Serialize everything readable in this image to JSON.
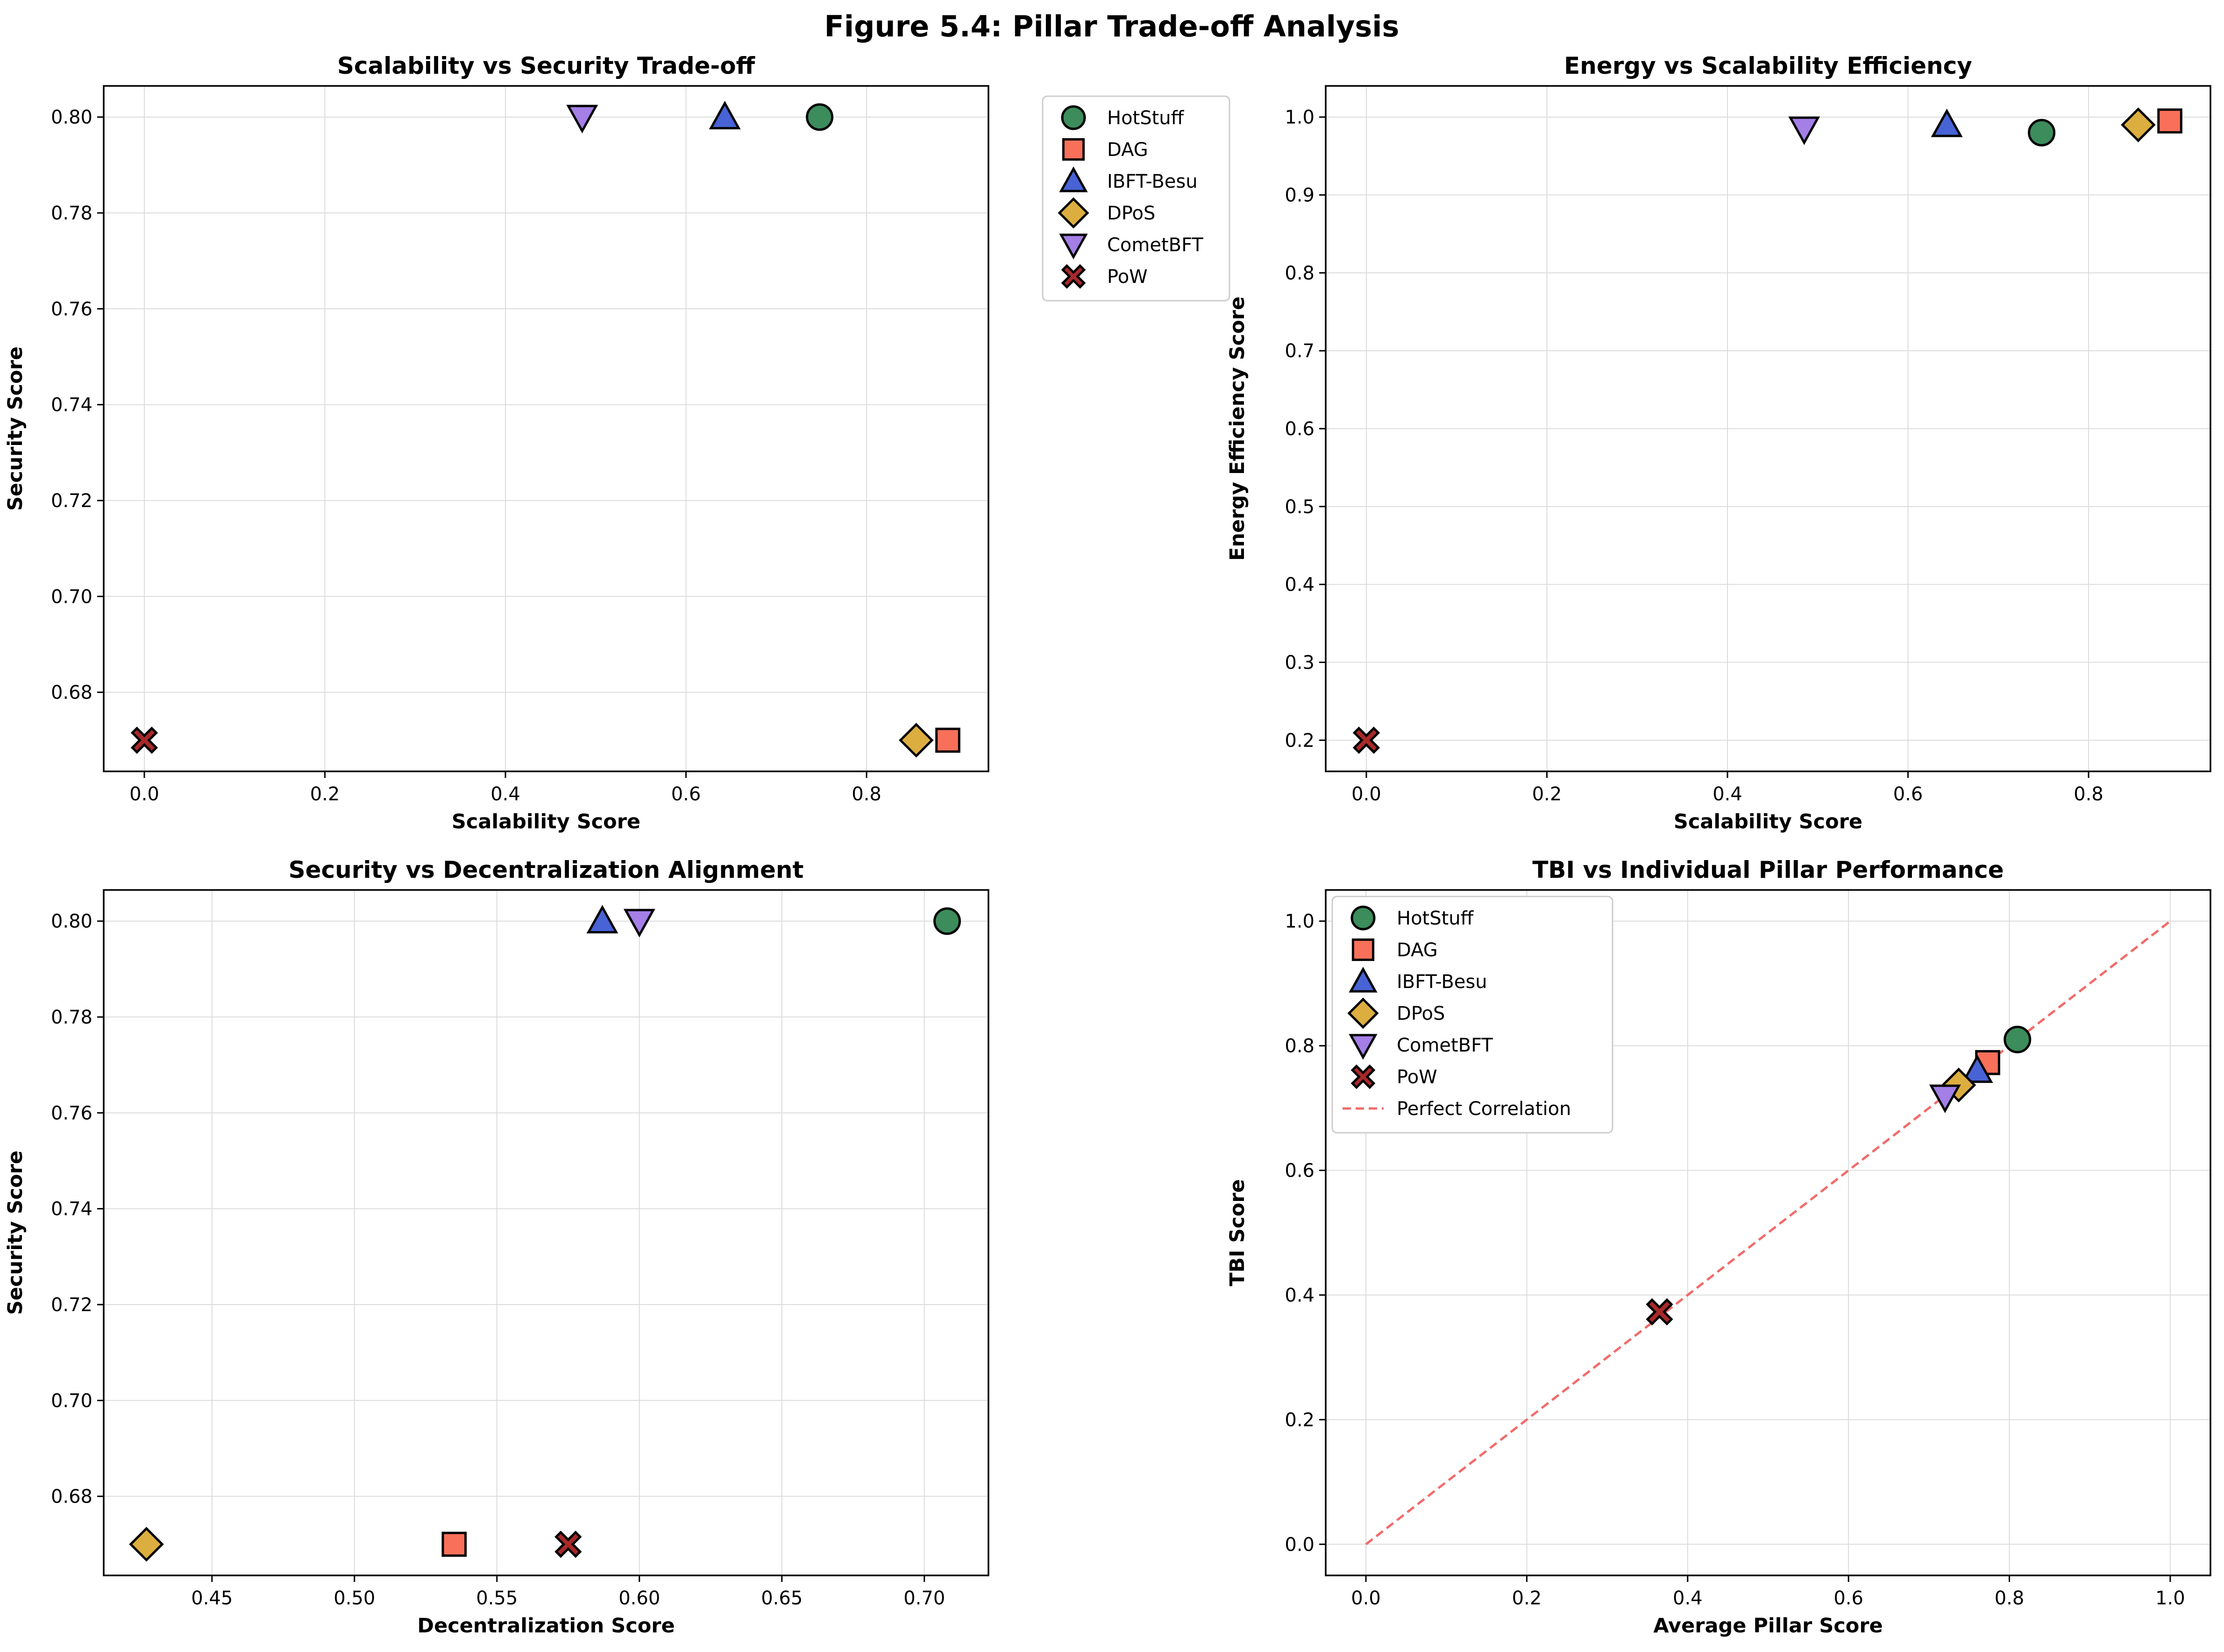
{
  "figure_title": "Figure 5.4: Pillar Trade-off Analysis",
  "styles": {
    "HotStuff": {
      "color": "#3c8c5c",
      "marker": "circle"
    },
    "DAG": {
      "color": "#f8705a",
      "marker": "square"
    },
    "IBFT-Besu": {
      "color": "#4863d6",
      "marker": "triangle-up"
    },
    "DPoS": {
      "color": "#dcae40",
      "marker": "diamond"
    },
    "CometBFT": {
      "color": "#a37fe6",
      "marker": "triangle-down"
    },
    "PoW": {
      "color": "#a8292a",
      "marker": "x-filled"
    }
  },
  "legend_reference_line": {
    "label": "Perfect Correlation",
    "color": "#f26b6b"
  },
  "chart_data": [
    {
      "type": "scatter",
      "title": "Scalability vs Security Trade-off",
      "xlabel": "Scalability Score",
      "ylabel": "Security Score",
      "xlim": [
        -0.045,
        0.935
      ],
      "ylim": [
        0.6635,
        0.8065
      ],
      "xticks": [
        0.0,
        0.2,
        0.4,
        0.6,
        0.8
      ],
      "yticks": [
        0.68,
        0.7,
        0.72,
        0.74,
        0.76,
        0.78,
        0.8
      ],
      "grid": true,
      "legend": "outside-right",
      "series": [
        {
          "name": "HotStuff",
          "x": 0.748,
          "y": 0.8
        },
        {
          "name": "DAG",
          "x": 0.89,
          "y": 0.67
        },
        {
          "name": "IBFT-Besu",
          "x": 0.643,
          "y": 0.8
        },
        {
          "name": "DPoS",
          "x": 0.855,
          "y": 0.67
        },
        {
          "name": "CometBFT",
          "x": 0.485,
          "y": 0.8
        },
        {
          "name": "PoW",
          "x": 0.0,
          "y": 0.67
        }
      ]
    },
    {
      "type": "scatter",
      "title": "Energy vs Scalability Efficiency",
      "xlabel": "Scalability Score",
      "ylabel": "Energy Efficiency Score",
      "xlim": [
        -0.045,
        0.935
      ],
      "ylim": [
        0.16,
        1.04
      ],
      "xticks": [
        0.0,
        0.2,
        0.4,
        0.6,
        0.8
      ],
      "yticks": [
        0.2,
        0.3,
        0.4,
        0.5,
        0.6,
        0.7,
        0.8,
        0.9,
        1.0
      ],
      "grid": true,
      "legend": "none",
      "series": [
        {
          "name": "HotStuff",
          "x": 0.748,
          "y": 0.98
        },
        {
          "name": "DAG",
          "x": 0.89,
          "y": 0.995
        },
        {
          "name": "IBFT-Besu",
          "x": 0.643,
          "y": 0.99
        },
        {
          "name": "DPoS",
          "x": 0.855,
          "y": 0.99
        },
        {
          "name": "CometBFT",
          "x": 0.485,
          "y": 0.985
        },
        {
          "name": "PoW",
          "x": 0.0,
          "y": 0.2
        }
      ]
    },
    {
      "type": "scatter",
      "title": "Security vs Decentralization Alignment",
      "xlabel": "Decentralization Score",
      "ylabel": "Security Score",
      "xlim": [
        0.412,
        0.7225
      ],
      "ylim": [
        0.6635,
        0.8065
      ],
      "xticks": [
        0.45,
        0.5,
        0.55,
        0.6,
        0.65,
        0.7
      ],
      "yticks": [
        0.68,
        0.7,
        0.72,
        0.74,
        0.76,
        0.78,
        0.8
      ],
      "grid": true,
      "legend": "none",
      "series": [
        {
          "name": "HotStuff",
          "x": 0.708,
          "y": 0.8
        },
        {
          "name": "DAG",
          "x": 0.535,
          "y": 0.67
        },
        {
          "name": "IBFT-Besu",
          "x": 0.587,
          "y": 0.8
        },
        {
          "name": "DPoS",
          "x": 0.427,
          "y": 0.67
        },
        {
          "name": "CometBFT",
          "x": 0.6,
          "y": 0.8
        },
        {
          "name": "PoW",
          "x": 0.575,
          "y": 0.67
        }
      ]
    },
    {
      "type": "scatter",
      "title": "TBI vs Individual Pillar Performance",
      "xlabel": "Average Pillar Score",
      "ylabel": "TBI Score",
      "xlim": [
        -0.05,
        1.05
      ],
      "ylim": [
        -0.05,
        1.05
      ],
      "xticks": [
        0.0,
        0.2,
        0.4,
        0.6,
        0.8,
        1.0
      ],
      "yticks": [
        0.0,
        0.2,
        0.4,
        0.6,
        0.8,
        1.0
      ],
      "grid": true,
      "legend": "upper-left",
      "reference_line": {
        "label": "Perfect Correlation",
        "x": [
          0,
          1
        ],
        "y": [
          0,
          1
        ],
        "style": "dashed"
      },
      "series": [
        {
          "name": "HotStuff",
          "x": 0.81,
          "y": 0.81
        },
        {
          "name": "DAG",
          "x": 0.773,
          "y": 0.773
        },
        {
          "name": "IBFT-Besu",
          "x": 0.76,
          "y": 0.76
        },
        {
          "name": "DPoS",
          "x": 0.737,
          "y": 0.737
        },
        {
          "name": "CometBFT",
          "x": 0.72,
          "y": 0.718
        },
        {
          "name": "PoW",
          "x": 0.365,
          "y": 0.373
        }
      ]
    }
  ]
}
